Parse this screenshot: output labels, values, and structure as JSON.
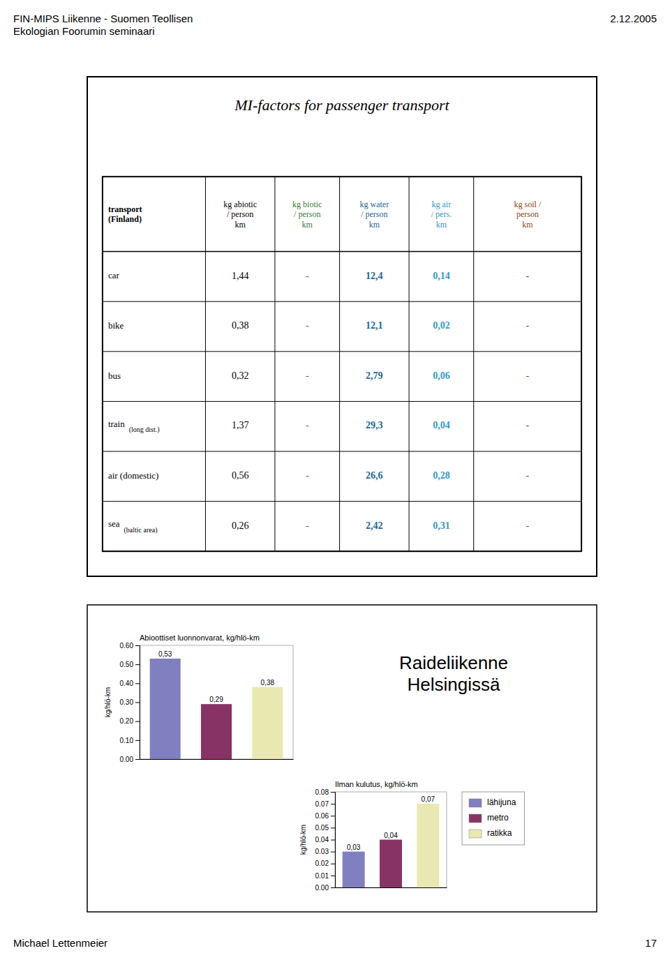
{
  "header_title": "FIN-MIPS Liikenne - Suomen Teollisen\nEkologian Foorumin seminaari",
  "header_date": "2.12.2005",
  "footer_left": "Michael Lettenmeier",
  "footer_right": "17",
  "annotation": "Raideliikenne\nHelsingissä",
  "chart_data": [
    {
      "type": "table",
      "title": "MI-factors for passenger transport",
      "columns": [
        "transport\n(Finland)",
        "kg abiotic\n/ person\nkm",
        "kg biotic\n/ person\nkm",
        "kg water\n/ person\nkm",
        "kg air\n/ pers.\nkm",
        "kg soil /\nperson\nkm"
      ],
      "colors": [
        "black",
        "black",
        "#3a7a3a",
        "#1a6699",
        "#3399cc",
        "#8B4513"
      ],
      "rows": [
        {
          "label": "car",
          "cells": [
            "1,44",
            "-",
            "12,4",
            "0,14",
            "-"
          ]
        },
        {
          "label": "bike",
          "cells": [
            "0,38",
            "-",
            "12,1",
            "0,02",
            "-"
          ]
        },
        {
          "label": "bus",
          "cells": [
            "0,32",
            "-",
            "2,79",
            "0,06",
            "-"
          ]
        },
        {
          "label": "train",
          "note": "(long dist.)",
          "cells": [
            "1,37",
            "-",
            "29,3",
            "0,04",
            "-"
          ]
        },
        {
          "label": "air (domestic)",
          "cells": [
            "0,56",
            "-",
            "26,6",
            "0,28",
            "-"
          ]
        },
        {
          "label": "sea",
          "note": "(baltic area)",
          "cells": [
            "0,26",
            "-",
            "2,42",
            "0,31",
            "-"
          ]
        }
      ]
    },
    {
      "type": "bar",
      "title": "Abioottiset luonnonvarat, kg/hlö-km",
      "ylabel": "kg/hlö-km",
      "categories": [
        "lähijuna",
        "metro",
        "ratikka"
      ],
      "values": [
        0.53,
        0.29,
        0.38
      ],
      "value_labels": [
        "0,53",
        "0,29",
        "0,38"
      ],
      "colors": [
        "#8080c0",
        "#883366",
        "#e8e8b0"
      ],
      "ylim": [
        0.0,
        0.6
      ],
      "yticks": [
        {
          "value": 0.0,
          "label": "0.00"
        },
        {
          "value": 0.1,
          "label": "0.10"
        },
        {
          "value": 0.2,
          "label": "0.20"
        },
        {
          "value": 0.3,
          "label": "0.30"
        },
        {
          "value": 0.4,
          "label": "0.40"
        },
        {
          "value": 0.5,
          "label": "0.50"
        },
        {
          "value": 0.6,
          "label": "0.60"
        }
      ],
      "data_labels": true,
      "tick_labels": "y"
    },
    {
      "type": "bar",
      "title": "Ilman kulutus, kg/hlö-km",
      "ylabel": "kg/hlö-km",
      "categories": [
        "lähijuna",
        "metro",
        "ratikka"
      ],
      "values": [
        0.03,
        0.04,
        0.07
      ],
      "value_labels": [
        "0,03",
        "0,04",
        "0,07"
      ],
      "colors": [
        "#8080c0",
        "#883366",
        "#e8e8b0"
      ],
      "ylim": [
        0.0,
        0.08
      ],
      "yticks": [
        {
          "value": 0.0,
          "label": "0.00"
        },
        {
          "value": 0.01,
          "label": "0.01"
        },
        {
          "value": 0.02,
          "label": "0.02"
        },
        {
          "value": 0.03,
          "label": "0.03"
        },
        {
          "value": 0.04,
          "label": "0.04"
        },
        {
          "value": 0.05,
          "label": "0.05"
        },
        {
          "value": 0.06,
          "label": "0.06"
        },
        {
          "value": 0.07,
          "label": "0.07"
        },
        {
          "value": 0.08,
          "label": "0.08"
        }
      ],
      "data_labels": true,
      "tick_labels": "y",
      "legend": "right"
    }
  ]
}
